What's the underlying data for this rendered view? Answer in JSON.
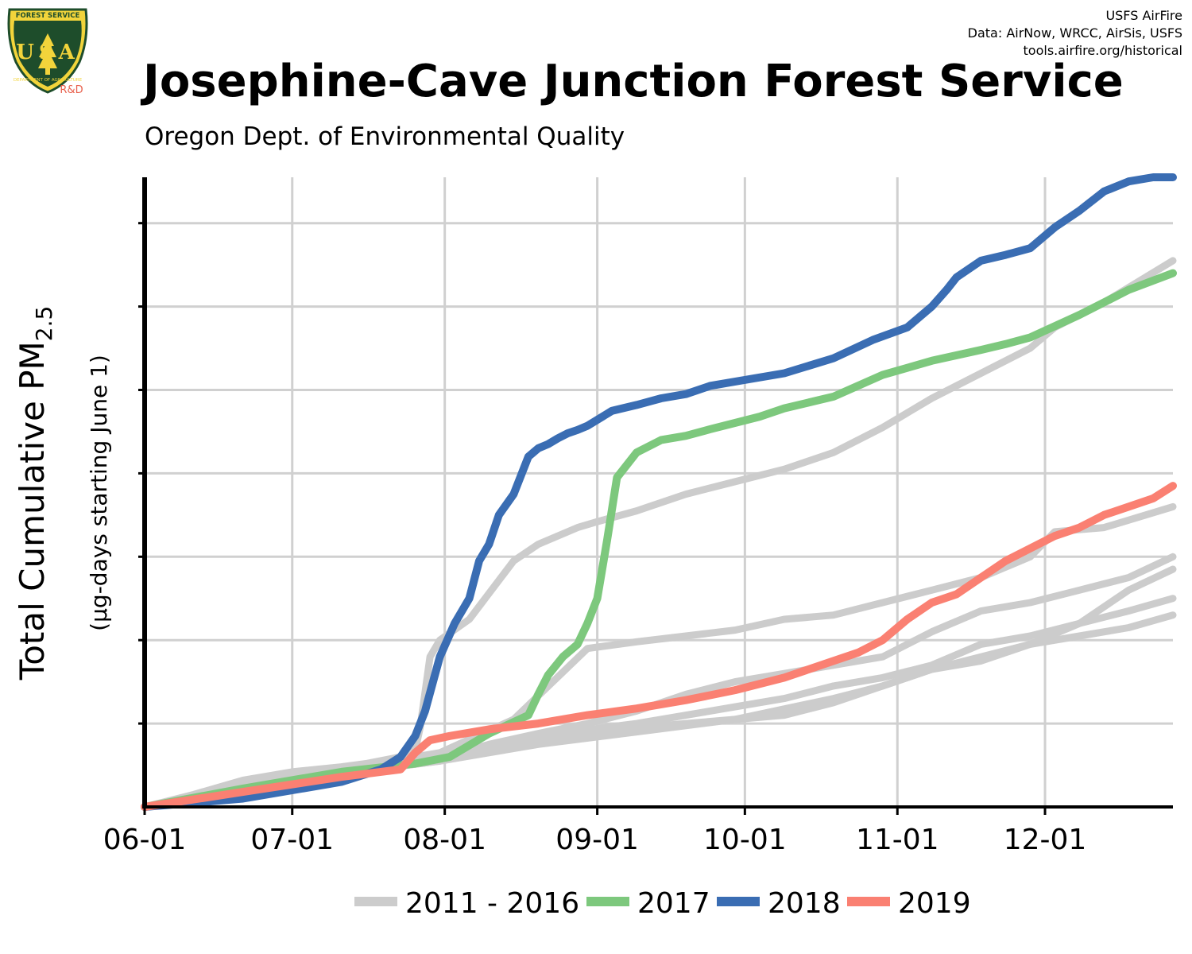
{
  "header": {
    "title": "Josephine-Cave Junction Forest Service",
    "subtitle": "Oregon Dept. of Environmental Quality",
    "credits": [
      "USFS AirFire",
      "Data: AirNow, WRCC, AirSis, USFS",
      "tools.airfire.org/historical"
    ],
    "logo": {
      "top_text": "FOREST SERVICE",
      "letters": "USA",
      "bottom_text": "DEPARTMENT OF AGRICULTURE",
      "tag": "R&D"
    }
  },
  "colors": {
    "history": "#cccccc",
    "y2017": "#7dc87d",
    "y2018": "#3a6db3",
    "y2019": "#fa8072",
    "grid": "#d0d0d0",
    "logo_green": "#1e4d2b",
    "logo_yellow": "#f2d43b",
    "logo_red": "#e8604c"
  },
  "chart_data": {
    "type": "line",
    "ylabel": "Total Cumulative PM",
    "ylabel_sub": "2.5",
    "ylabel2": "(µg-days starting June 1)",
    "x_unit": "days since June 1",
    "xlim": [
      0,
      209
    ],
    "ylim": [
      0,
      7.55
    ],
    "y_gridlines": [
      1,
      2,
      3,
      4,
      5,
      6,
      7
    ],
    "x_ticks": [
      {
        "day": 0,
        "label": "06-01"
      },
      {
        "day": 30,
        "label": "07-01"
      },
      {
        "day": 61,
        "label": "08-01"
      },
      {
        "day": 92,
        "label": "09-01"
      },
      {
        "day": 122,
        "label": "10-01"
      },
      {
        "day": 153,
        "label": "11-01"
      },
      {
        "day": 183,
        "label": "12-01"
      }
    ],
    "legend": {
      "placement": "bottom",
      "entries": [
        {
          "label": "2011 - 2016",
          "color_key": "history"
        },
        {
          "label": "2017",
          "color_key": "y2017"
        },
        {
          "label": "2018",
          "color_key": "y2018"
        },
        {
          "label": "2019",
          "color_key": "y2019"
        }
      ]
    },
    "series": [
      {
        "name": "2011 - 2016",
        "color_key": "history",
        "x": [
          0,
          10,
          20,
          30,
          40,
          45,
          52,
          55,
          56,
          58,
          60,
          66,
          75,
          80,
          88,
          92,
          100,
          110,
          120,
          130,
          140,
          150,
          160,
          170,
          180,
          185,
          195,
          209
        ],
        "y": [
          0,
          0.15,
          0.32,
          0.42,
          0.48,
          0.52,
          0.6,
          0.68,
          0.95,
          1.8,
          2.0,
          2.25,
          2.95,
          3.15,
          3.35,
          3.42,
          3.55,
          3.75,
          3.9,
          4.05,
          4.25,
          4.55,
          4.9,
          5.2,
          5.5,
          5.75,
          6.05,
          6.55
        ]
      },
      {
        "name": "2011 - 2016",
        "color_key": "history",
        "x": [
          0,
          15,
          30,
          45,
          60,
          75,
          90,
          100,
          110,
          120,
          130,
          140,
          150,
          160,
          170,
          180,
          185,
          195,
          209
        ],
        "y": [
          0,
          0.18,
          0.36,
          0.5,
          0.65,
          1.05,
          1.9,
          1.98,
          2.05,
          2.12,
          2.25,
          2.3,
          2.45,
          2.6,
          2.75,
          3.0,
          3.3,
          3.35,
          3.6
        ]
      },
      {
        "name": "2011 - 2016",
        "color_key": "history",
        "x": [
          0,
          20,
          40,
          60,
          70,
          80,
          90,
          100,
          110,
          120,
          130,
          140,
          150,
          160,
          170,
          180,
          190,
          200,
          209
        ],
        "y": [
          0,
          0.25,
          0.45,
          0.58,
          0.75,
          0.88,
          1.0,
          1.15,
          1.35,
          1.5,
          1.6,
          1.7,
          1.8,
          2.1,
          2.35,
          2.45,
          2.6,
          2.75,
          3.0
        ]
      },
      {
        "name": "2011 - 2016",
        "color_key": "history",
        "x": [
          0,
          20,
          40,
          60,
          80,
          100,
          120,
          130,
          140,
          150,
          160,
          170,
          180,
          190,
          200,
          209
        ],
        "y": [
          0,
          0.2,
          0.4,
          0.55,
          0.8,
          0.95,
          1.05,
          1.1,
          1.25,
          1.45,
          1.65,
          1.75,
          1.95,
          2.2,
          2.6,
          2.85
        ]
      },
      {
        "name": "2011 - 2016",
        "color_key": "history",
        "x": [
          0,
          20,
          40,
          60,
          80,
          100,
          120,
          130,
          140,
          150,
          160,
          170,
          180,
          190,
          200,
          209
        ],
        "y": [
          0,
          0.22,
          0.42,
          0.6,
          0.85,
          1.0,
          1.2,
          1.3,
          1.45,
          1.55,
          1.7,
          1.95,
          2.05,
          2.2,
          2.35,
          2.5
        ]
      },
      {
        "name": "2011 - 2016",
        "color_key": "history",
        "x": [
          0,
          20,
          40,
          60,
          80,
          100,
          120,
          140,
          150,
          160,
          170,
          180,
          190,
          200,
          209
        ],
        "y": [
          0,
          0.2,
          0.4,
          0.55,
          0.75,
          0.9,
          1.05,
          1.3,
          1.45,
          1.65,
          1.8,
          1.95,
          2.05,
          2.15,
          2.3
        ]
      },
      {
        "name": "2017",
        "color_key": "y2017",
        "x": [
          0,
          20,
          40,
          55,
          62,
          70,
          78,
          80,
          82,
          85,
          88,
          90,
          92,
          94,
          96,
          100,
          105,
          110,
          115,
          125,
          130,
          140,
          150,
          160,
          170,
          175,
          180,
          190,
          200,
          209
        ],
        "y": [
          0,
          0.22,
          0.42,
          0.52,
          0.6,
          0.88,
          1.1,
          1.35,
          1.58,
          1.8,
          1.95,
          2.2,
          2.5,
          3.2,
          3.95,
          4.25,
          4.4,
          4.45,
          4.53,
          4.68,
          4.78,
          4.92,
          5.18,
          5.35,
          5.48,
          5.55,
          5.63,
          5.9,
          6.2,
          6.4
        ]
      },
      {
        "name": "2018",
        "color_key": "y2018",
        "x": [
          0,
          20,
          40,
          48,
          52,
          55,
          57,
          60,
          63,
          66,
          68,
          70,
          72,
          75,
          78,
          80,
          82,
          84,
          86,
          88,
          90,
          95,
          100,
          105,
          110,
          115,
          120,
          130,
          140,
          148,
          155,
          160,
          163,
          165,
          170,
          175,
          180,
          185,
          190,
          195,
          200,
          205,
          209
        ],
        "y": [
          0,
          0.1,
          0.3,
          0.45,
          0.6,
          0.85,
          1.15,
          1.8,
          2.2,
          2.5,
          2.95,
          3.15,
          3.5,
          3.75,
          4.2,
          4.3,
          4.35,
          4.42,
          4.48,
          4.52,
          4.57,
          4.75,
          4.82,
          4.9,
          4.95,
          5.05,
          5.1,
          5.2,
          5.38,
          5.6,
          5.75,
          6.0,
          6.2,
          6.35,
          6.55,
          6.62,
          6.7,
          6.95,
          7.15,
          7.38,
          7.5,
          7.55,
          7.55
        ]
      },
      {
        "name": "2019",
        "color_key": "y2019",
        "x": [
          0,
          20,
          40,
          52,
          55,
          58,
          62,
          70,
          80,
          90,
          100,
          110,
          120,
          130,
          135,
          145,
          150,
          155,
          160,
          165,
          170,
          175,
          180,
          185,
          190,
          195,
          200,
          205,
          209
        ],
        "y": [
          0,
          0.18,
          0.36,
          0.45,
          0.65,
          0.8,
          0.85,
          0.93,
          1.0,
          1.1,
          1.18,
          1.28,
          1.4,
          1.55,
          1.65,
          1.85,
          2.0,
          2.25,
          2.45,
          2.55,
          2.75,
          2.95,
          3.1,
          3.25,
          3.35,
          3.5,
          3.6,
          3.7,
          3.85
        ]
      }
    ]
  }
}
